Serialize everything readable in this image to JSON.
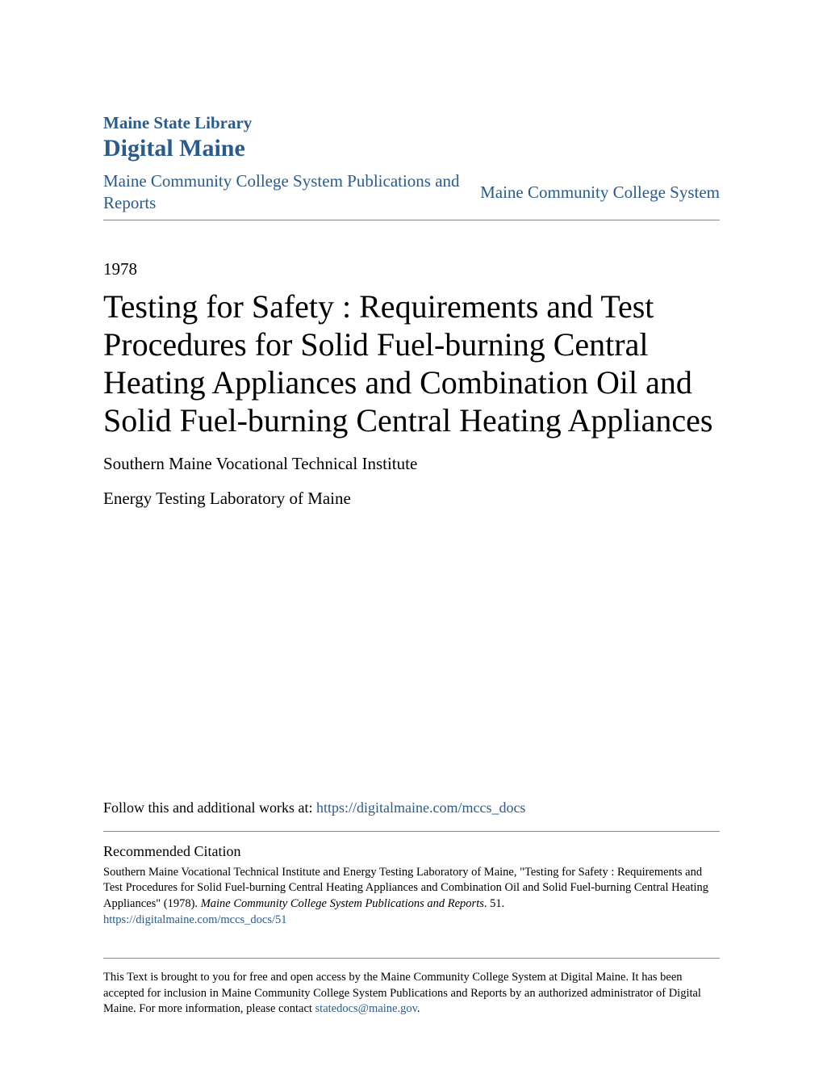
{
  "header": {
    "library_name": "Maine State Library",
    "site_name": "Digital Maine",
    "collection_left": "Maine Community College System Publications and Reports",
    "collection_right": "Maine Community College System"
  },
  "meta": {
    "year": "1978"
  },
  "title": "Testing for Safety : Requirements and Test Procedures for Solid Fuel-burning Central Heating Appliances and Combination Oil and Solid Fuel-burning Central Heating Appliances",
  "authors": [
    "Southern Maine Vocational Technical Institute",
    "Energy Testing Laboratory of Maine"
  ],
  "follow": {
    "prefix": "Follow this and additional works at: ",
    "url_text": "https://digitalmaine.com/mccs_docs"
  },
  "citation": {
    "heading": "Recommended Citation",
    "text_before_italic": "Southern Maine Vocational Technical Institute and Energy Testing Laboratory of Maine, \"Testing for Safety : Requirements and Test Procedures for Solid Fuel-burning Central Heating Appliances and Combination Oil and Solid Fuel-burning Central Heating Appliances\" (1978). ",
    "italic_part": "Maine Community College System Publications and Reports",
    "text_after_italic": ". 51.",
    "link_text": "https://digitalmaine.com/mccs_docs/51"
  },
  "footer": {
    "text": "This Text is brought to you for free and open access by the Maine Community College System at Digital Maine. It has been accepted for inclusion in Maine Community College System Publications and Reports by an authorized administrator of Digital Maine. For more information, please contact ",
    "email": "statedocs@maine.gov",
    "suffix": "."
  },
  "colors": {
    "link": "#2a5b8e",
    "text": "#000000",
    "divider": "#888888",
    "background": "#ffffff"
  },
  "typography": {
    "library_name_size": 21,
    "site_name_size": 30,
    "collection_size": 21,
    "year_size": 21,
    "title_size": 40,
    "author_size": 21,
    "follow_size": 18,
    "citation_heading_size": 18,
    "citation_body_size": 14.5,
    "footer_size": 14.5
  }
}
